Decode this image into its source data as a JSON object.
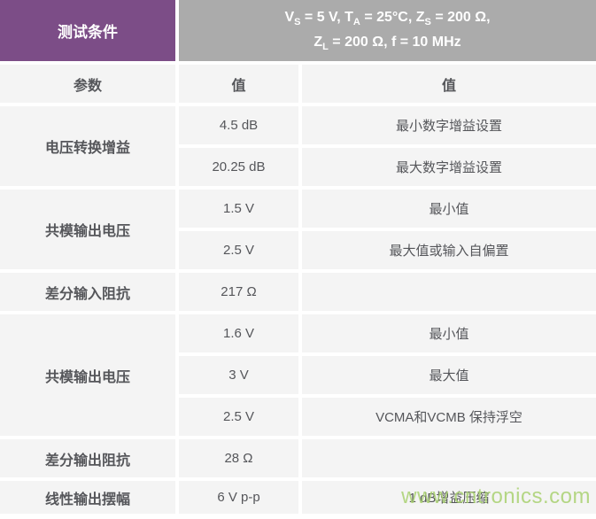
{
  "header": {
    "title": "测试条件",
    "cond": {
      "l1s1": "V",
      "l1sub1": "S",
      "l1s2": " = 5 V, T",
      "l1sub2": "A",
      "l1s3": " = 25°C, Z",
      "l1sub3": "S",
      "l1s4": " = 200 Ω,",
      "l2s1": "Z",
      "l2sub1": "L",
      "l2s2": " = 200 Ω, f = 10 MHz"
    }
  },
  "columns": {
    "param": "参数",
    "value": "值",
    "value2": "值"
  },
  "rows": [
    {
      "param": "电压转换增益",
      "entries": [
        {
          "value": "4.5 dB",
          "note": "最小数字增益设置"
        },
        {
          "value": "20.25 dB",
          "note": "最大数字增益设置"
        }
      ]
    },
    {
      "param": "共模输出电压",
      "entries": [
        {
          "value": "1.5 V",
          "note": "最小值"
        },
        {
          "value": "2.5 V",
          "note": "最大值或输入自偏置"
        }
      ]
    },
    {
      "param": "差分输入阻抗",
      "entries": [
        {
          "value": "217 Ω",
          "note": ""
        }
      ]
    },
    {
      "param": "共模输出电压",
      "entries": [
        {
          "value": "1.6 V",
          "note": "最小值"
        },
        {
          "value": "3 V",
          "note": "最大值"
        },
        {
          "value": "2.5 V",
          "note": "VCMA和VCMB 保持浮空"
        }
      ]
    },
    {
      "param": "差分输出阻抗",
      "entries": [
        {
          "value": "28 Ω",
          "note": ""
        }
      ]
    },
    {
      "param": "线性输出摆幅",
      "entries": [
        {
          "value": "6 V p-p",
          "note": "1 dB增益压缩"
        }
      ]
    }
  ],
  "watermark": "www.cntronics.com",
  "colors": {
    "accent_purple": "#7c4d87",
    "header_gray": "#ababab",
    "cell_bg": "#f4f4f4",
    "text": "#55565a",
    "watermark_green": "#a9d171"
  }
}
